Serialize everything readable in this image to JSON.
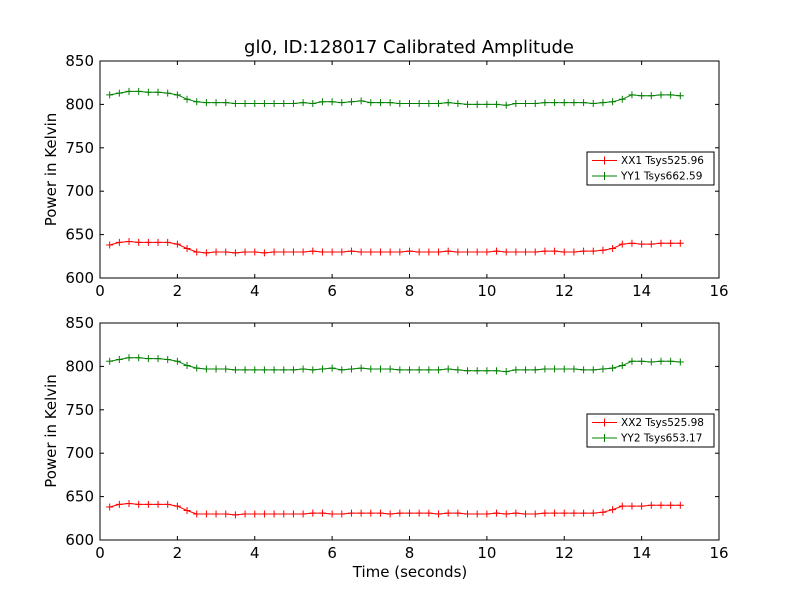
{
  "chart_data": [
    {
      "type": "line",
      "title": "gl0, ID:128017 Calibrated Amplitude",
      "xlabel": "",
      "ylabel": "Power in Kelvin",
      "xlim": [
        0,
        16
      ],
      "ylim": [
        600,
        850
      ],
      "xticks": [
        0,
        2,
        4,
        6,
        8,
        10,
        12,
        14,
        16
      ],
      "yticks": [
        600,
        650,
        700,
        750,
        800,
        850
      ],
      "legend_position": "right",
      "marker": "plus",
      "x": [
        0.25,
        0.5,
        0.75,
        1.0,
        1.25,
        1.5,
        1.75,
        2.0,
        2.25,
        2.5,
        2.75,
        3.0,
        3.25,
        3.5,
        3.75,
        4.0,
        4.25,
        4.5,
        4.75,
        5.0,
        5.25,
        5.5,
        5.75,
        6.0,
        6.25,
        6.5,
        6.75,
        7.0,
        7.25,
        7.5,
        7.75,
        8.0,
        8.25,
        8.5,
        8.75,
        9.0,
        9.25,
        9.5,
        9.75,
        10.0,
        10.25,
        10.5,
        10.75,
        11.0,
        11.25,
        11.5,
        11.75,
        12.0,
        12.25,
        12.5,
        12.75,
        13.0,
        13.25,
        13.5,
        13.75,
        14.0,
        14.25,
        14.5,
        14.75,
        15.0
      ],
      "series": [
        {
          "name": "XX1 Tsys525.96",
          "color": "#ff0000",
          "values": [
            638,
            641,
            642,
            641,
            641,
            641,
            641,
            639,
            634,
            630,
            629,
            630,
            630,
            629,
            630,
            630,
            629,
            630,
            630,
            630,
            630,
            631,
            630,
            630,
            630,
            631,
            630,
            630,
            630,
            630,
            630,
            631,
            630,
            630,
            630,
            631,
            630,
            630,
            630,
            630,
            631,
            630,
            630,
            630,
            630,
            631,
            631,
            630,
            630,
            631,
            631,
            632,
            634,
            639,
            640,
            639,
            639,
            640,
            640,
            640
          ]
        },
        {
          "name": "YY1 Tsys662.59",
          "color": "#008000",
          "values": [
            811,
            813,
            815,
            815,
            814,
            814,
            813,
            811,
            806,
            803,
            802,
            802,
            802,
            801,
            801,
            801,
            801,
            801,
            801,
            801,
            802,
            801,
            803,
            803,
            802,
            803,
            804,
            802,
            802,
            802,
            801,
            801,
            801,
            801,
            801,
            802,
            801,
            800,
            800,
            800,
            800,
            799,
            801,
            801,
            801,
            802,
            802,
            802,
            802,
            802,
            801,
            802,
            803,
            806,
            811,
            810,
            810,
            811,
            811,
            810
          ]
        }
      ]
    },
    {
      "type": "line",
      "title": "",
      "xlabel": "Time (seconds)",
      "ylabel": "Power in Kelvin",
      "xlim": [
        0,
        16
      ],
      "ylim": [
        600,
        850
      ],
      "xticks": [
        0,
        2,
        4,
        6,
        8,
        10,
        12,
        14,
        16
      ],
      "yticks": [
        600,
        650,
        700,
        750,
        800,
        850
      ],
      "legend_position": "right",
      "marker": "plus",
      "x": [
        0.25,
        0.5,
        0.75,
        1.0,
        1.25,
        1.5,
        1.75,
        2.0,
        2.25,
        2.5,
        2.75,
        3.0,
        3.25,
        3.5,
        3.75,
        4.0,
        4.25,
        4.5,
        4.75,
        5.0,
        5.25,
        5.5,
        5.75,
        6.0,
        6.25,
        6.5,
        6.75,
        7.0,
        7.25,
        7.5,
        7.75,
        8.0,
        8.25,
        8.5,
        8.75,
        9.0,
        9.25,
        9.5,
        9.75,
        10.0,
        10.25,
        10.5,
        10.75,
        11.0,
        11.25,
        11.5,
        11.75,
        12.0,
        12.25,
        12.5,
        12.75,
        13.0,
        13.25,
        13.5,
        13.75,
        14.0,
        14.25,
        14.5,
        14.75,
        15.0
      ],
      "series": [
        {
          "name": "XX2 Tsys525.98",
          "color": "#ff0000",
          "values": [
            638,
            641,
            642,
            641,
            641,
            641,
            641,
            639,
            634,
            630,
            630,
            630,
            630,
            629,
            630,
            630,
            630,
            630,
            630,
            630,
            630,
            631,
            631,
            630,
            630,
            631,
            631,
            631,
            631,
            630,
            631,
            631,
            631,
            631,
            630,
            631,
            631,
            630,
            630,
            630,
            631,
            630,
            631,
            630,
            630,
            631,
            631,
            631,
            631,
            631,
            631,
            632,
            635,
            639,
            639,
            639,
            640,
            640,
            640,
            640
          ]
        },
        {
          "name": "YY2 Tsys653.17",
          "color": "#008000",
          "values": [
            806,
            808,
            810,
            810,
            809,
            809,
            808,
            806,
            801,
            798,
            797,
            797,
            797,
            796,
            796,
            796,
            796,
            796,
            796,
            796,
            797,
            796,
            797,
            798,
            796,
            797,
            798,
            797,
            797,
            797,
            796,
            796,
            796,
            796,
            796,
            797,
            796,
            795,
            795,
            795,
            795,
            794,
            796,
            796,
            796,
            797,
            797,
            797,
            797,
            796,
            796,
            797,
            798,
            801,
            806,
            806,
            805,
            806,
            806,
            805
          ]
        }
      ]
    }
  ]
}
